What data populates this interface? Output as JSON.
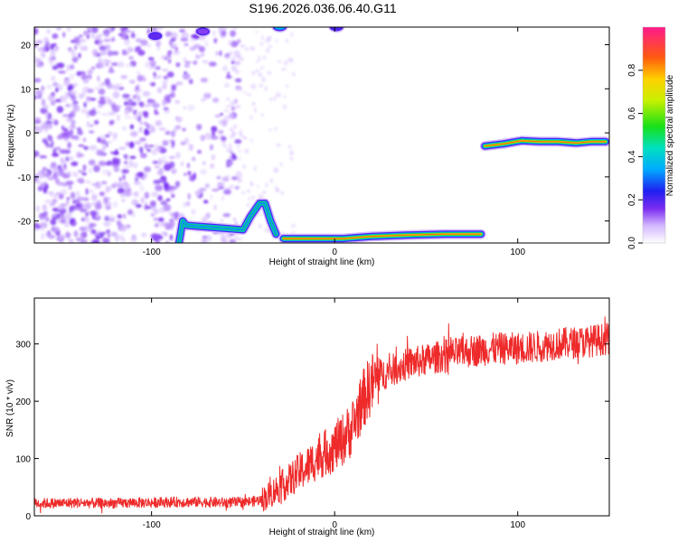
{
  "figure": {
    "title": "S196.2026.036.06.40.G11"
  },
  "chart_data": [
    {
      "type": "heatmap",
      "xlabel": "Height of straight line (km)",
      "ylabel": "Frequency (Hz)",
      "xlim": [
        -164,
        150
      ],
      "ylim": [
        -25,
        24
      ],
      "xticks": [
        -100,
        0,
        100
      ],
      "yticks": [
        -20,
        -10,
        0,
        10,
        20
      ],
      "colorbar": {
        "label": "Normalized spectral amplitude",
        "range": [
          0,
          1
        ],
        "ticks": [
          0.0,
          0.2,
          0.4,
          0.6,
          0.8
        ],
        "tick_labels": [
          "0.0",
          "0.2",
          "0.4",
          "0.6",
          "0.8"
        ]
      },
      "features": [
        {
          "name": "noise-field",
          "x_range": [
            -164,
            -52
          ],
          "freq_range": [
            -25,
            24
          ],
          "amplitude": 0.1
        },
        {
          "name": "upper-edge-blob-1",
          "x": -98,
          "freq": 22,
          "amplitude": 0.18
        },
        {
          "name": "upper-edge-blob-2",
          "x": -72,
          "freq": 23,
          "amplitude": 0.15
        },
        {
          "name": "upper-edge-blob-3",
          "x": -30,
          "freq": 24,
          "amplitude": 0.35
        },
        {
          "name": "upper-edge-blob-4",
          "x": 1,
          "freq": 24,
          "amplitude": 0.2
        },
        {
          "name": "rising-arc",
          "points": [
            [
              -85,
              -25
            ],
            [
              -83,
              -20
            ],
            [
              -81,
              -21
            ],
            [
              -50,
              -22
            ],
            [
              -46,
              -19
            ],
            [
              -41,
              -16
            ],
            [
              -38,
              -16
            ],
            [
              -35,
              -20
            ],
            [
              -32,
              -23
            ]
          ],
          "amplitude": 0.35
        },
        {
          "name": "lower-line",
          "points": [
            [
              -28,
              -24
            ],
            [
              -10,
              -24
            ],
            [
              5,
              -24
            ],
            [
              20,
              -23.5
            ],
            [
              40,
              -23.2
            ],
            [
              60,
              -23
            ],
            [
              80,
              -23
            ]
          ],
          "amplitude": 0.85
        },
        {
          "name": "upper-line",
          "points": [
            [
              82,
              -3
            ],
            [
              92,
              -2.5
            ],
            [
              102,
              -1.8
            ],
            [
              112,
              -2
            ],
            [
              122,
              -2
            ],
            [
              132,
              -2.3
            ],
            [
              140,
              -2
            ],
            [
              148,
              -2
            ]
          ],
          "amplitude": 0.85
        }
      ]
    },
    {
      "type": "line",
      "xlabel": "Height of straight line (km)",
      "ylabel": "SNR (10 * v/v)",
      "xlim": [
        -164,
        150
      ],
      "ylim": [
        0,
        380
      ],
      "xticks": [
        -100,
        0,
        100
      ],
      "yticks": [
        0,
        100,
        200,
        300
      ],
      "series": [
        {
          "name": "SNR",
          "color": "#ee2a2a",
          "x": [
            -164,
            -150,
            -140,
            -130,
            -120,
            -110,
            -100,
            -90,
            -80,
            -70,
            -60,
            -50,
            -45,
            -40,
            -35,
            -30,
            -25,
            -20,
            -15,
            -10,
            -5,
            0,
            5,
            10,
            15,
            20,
            25,
            30,
            40,
            50,
            60,
            70,
            80,
            90,
            100,
            110,
            120,
            130,
            140,
            150
          ],
          "y": [
            22,
            22,
            23,
            22,
            22,
            23,
            23,
            24,
            24,
            24,
            23,
            24,
            25,
            28,
            38,
            50,
            60,
            75,
            85,
            100,
            110,
            120,
            135,
            155,
            200,
            230,
            245,
            252,
            265,
            272,
            280,
            285,
            290,
            292,
            292,
            295,
            300,
            302,
            305,
            310
          ]
        }
      ]
    }
  ]
}
